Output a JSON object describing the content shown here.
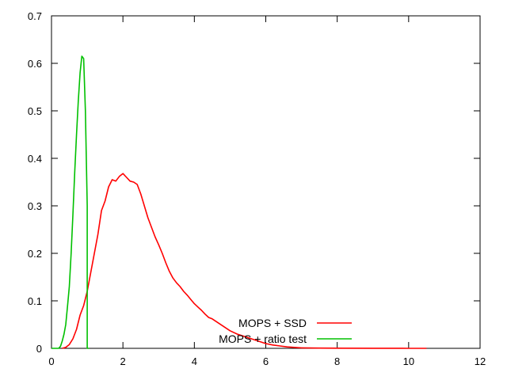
{
  "chart_data": {
    "type": "line",
    "xlim": [
      0,
      12
    ],
    "ylim": [
      0,
      0.7
    ],
    "x_ticks": [
      "0",
      "2",
      "4",
      "6",
      "8",
      "10",
      "12"
    ],
    "y_ticks": [
      "0",
      "0.1",
      "0.2",
      "0.3",
      "0.4",
      "0.5",
      "0.6",
      "0.7"
    ],
    "grid": false,
    "legend_position": "bottom-right",
    "series": [
      {
        "name": "MOPS + SSD",
        "color": "#ff0000",
        "x": [
          0.3,
          0.4,
          0.5,
          0.6,
          0.7,
          0.8,
          0.9,
          1.0,
          1.1,
          1.2,
          1.3,
          1.4,
          1.5,
          1.6,
          1.7,
          1.8,
          1.9,
          2.0,
          2.1,
          2.2,
          2.3,
          2.4,
          2.5,
          2.6,
          2.7,
          2.8,
          2.9,
          3.0,
          3.1,
          3.2,
          3.3,
          3.4,
          3.5,
          3.6,
          3.7,
          3.8,
          3.9,
          4.0,
          4.1,
          4.2,
          4.3,
          4.4,
          4.5,
          4.6,
          4.7,
          4.8,
          4.9,
          5.0,
          5.2,
          5.4,
          5.6,
          5.8,
          6.0,
          6.2,
          6.4,
          6.6,
          6.8,
          7.0,
          7.5,
          8.0,
          9.0,
          10.0,
          10.5
        ],
        "y": [
          0.0,
          0.002,
          0.008,
          0.02,
          0.04,
          0.07,
          0.09,
          0.12,
          0.16,
          0.2,
          0.24,
          0.29,
          0.31,
          0.34,
          0.355,
          0.352,
          0.362,
          0.368,
          0.36,
          0.352,
          0.35,
          0.345,
          0.325,
          0.3,
          0.275,
          0.255,
          0.235,
          0.218,
          0.2,
          0.18,
          0.162,
          0.148,
          0.138,
          0.13,
          0.12,
          0.112,
          0.103,
          0.094,
          0.087,
          0.08,
          0.072,
          0.065,
          0.062,
          0.057,
          0.052,
          0.047,
          0.042,
          0.037,
          0.03,
          0.025,
          0.02,
          0.015,
          0.01,
          0.007,
          0.005,
          0.003,
          0.002,
          0.001,
          0.0005,
          0.0003,
          0.0001,
          0.0,
          0.0
        ]
      },
      {
        "name": "MOPS + ratio test",
        "color": "#00c000",
        "x": [
          0.0,
          0.2,
          0.25,
          0.3,
          0.35,
          0.4,
          0.45,
          0.5,
          0.55,
          0.6,
          0.65,
          0.7,
          0.75,
          0.8,
          0.85,
          0.9,
          0.95,
          1.0,
          1.0,
          1.05
        ],
        "y": [
          0.0,
          0.0,
          0.004,
          0.015,
          0.03,
          0.05,
          0.09,
          0.13,
          0.2,
          0.28,
          0.37,
          0.45,
          0.52,
          0.58,
          0.615,
          0.61,
          0.5,
          0.3,
          0.0,
          0.0
        ]
      }
    ]
  }
}
